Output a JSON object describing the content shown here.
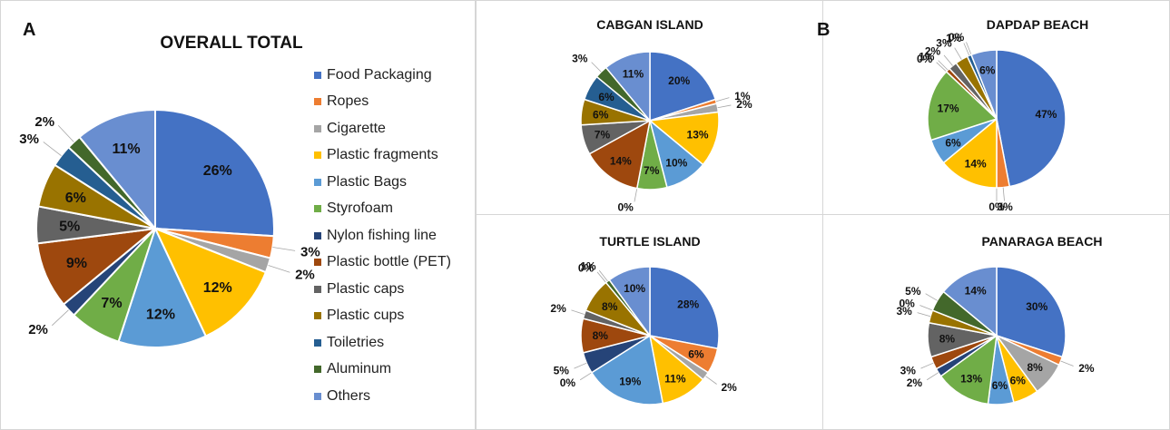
{
  "panel_labels": {
    "a": "A",
    "b": "B"
  },
  "categories": [
    "Food Packaging",
    "Ropes",
    "Cigarette",
    "Plastic fragments",
    "Plastic Bags",
    "Styrofoam",
    "Nylon fishing line",
    "Plastic bottle (PET)",
    "Plastic caps",
    "Plastic cups",
    "Toiletries",
    "Aluminum",
    "Others"
  ],
  "colors": [
    "#4472C4",
    "#ED7D31",
    "#A5A5A5",
    "#FFC000",
    "#5B9BD5",
    "#70AD47",
    "#264478",
    "#9E480E",
    "#636363",
    "#997300",
    "#255E91",
    "#43682B",
    "#698ED0"
  ],
  "chart_data": [
    {
      "type": "pie",
      "title": "OVERALL TOTAL",
      "categories": [
        "Food Packaging",
        "Ropes",
        "Cigarette",
        "Plastic fragments",
        "Plastic Bags",
        "Styrofoam",
        "Nylon fishing line",
        "Plastic bottle (PET)",
        "Plastic caps",
        "Plastic cups",
        "Toiletries",
        "Aluminum",
        "Others"
      ],
      "values": [
        26,
        3,
        2,
        12,
        12,
        7,
        2,
        9,
        5,
        6,
        3,
        2,
        11
      ],
      "labels": [
        "26%",
        "3%",
        "2%",
        "12%",
        "12%",
        "7%",
        "2%",
        "9%",
        "5%",
        "6%",
        "3%",
        "2%",
        "11%"
      ],
      "legend": "right"
    },
    {
      "type": "pie",
      "title": "CABGAN ISLAND",
      "categories": [
        "Food Packaging",
        "Ropes",
        "Cigarette",
        "Plastic fragments",
        "Plastic Bags",
        "Styrofoam",
        "Nylon fishing line",
        "Plastic bottle (PET)",
        "Plastic caps",
        "Plastic cups",
        "Toiletries",
        "Aluminum",
        "Others"
      ],
      "values": [
        20,
        1,
        2,
        13,
        10,
        7,
        0,
        14,
        7,
        6,
        6,
        3,
        11
      ],
      "labels": [
        "20%",
        "1%",
        "2%",
        "13%",
        "10%",
        "7%",
        "0%",
        "14%",
        "7%",
        "6%",
        "6%",
        "3%",
        "11%"
      ]
    },
    {
      "type": "pie",
      "title": "DAPDAP BEACH",
      "categories": [
        "Food Packaging",
        "Ropes",
        "Cigarette",
        "Plastic fragments",
        "Plastic Bags",
        "Styrofoam",
        "Nylon fishing line",
        "Plastic bottle (PET)",
        "Plastic caps",
        "Plastic cups",
        "Toiletries",
        "Aluminum",
        "Others"
      ],
      "values": [
        47,
        3,
        0,
        14,
        6,
        17,
        0,
        1,
        2,
        3,
        1,
        0,
        6
      ],
      "labels": [
        "47%",
        "3%",
        "0%",
        "14%",
        "6%",
        "17%",
        "0%",
        "1%",
        "2%",
        "3%",
        "1%",
        "0%",
        "6%"
      ]
    },
    {
      "type": "pie",
      "title": "TURTLE ISLAND",
      "categories": [
        "Food Packaging",
        "Ropes",
        "Cigarette",
        "Plastic fragments",
        "Plastic Bags",
        "Styrofoam",
        "Nylon fishing line",
        "Plastic bottle (PET)",
        "Plastic caps",
        "Plastic cups",
        "Toiletries",
        "Aluminum",
        "Others"
      ],
      "values": [
        28,
        6,
        2,
        11,
        19,
        0,
        5,
        8,
        2,
        8,
        0,
        1,
        10
      ],
      "labels": [
        "28%",
        "6%",
        "2%",
        "11%",
        "19%",
        "0%",
        "5%",
        "8%",
        "2%",
        "8%",
        "0%",
        "1%",
        "10%"
      ]
    },
    {
      "type": "pie",
      "title": "PANARAGA BEACH",
      "categories": [
        "Food Packaging",
        "Ropes",
        "Cigarette",
        "Plastic fragments",
        "Plastic Bags",
        "Styrofoam",
        "Nylon fishing line",
        "Plastic bottle (PET)",
        "Plastic caps",
        "Plastic cups",
        "Toiletries",
        "Aluminum",
        "Others"
      ],
      "values": [
        30,
        2,
        8,
        6,
        6,
        13,
        2,
        3,
        8,
        3,
        0,
        5,
        14
      ],
      "labels": [
        "30%",
        "2%",
        "8%",
        "6%",
        "6%",
        "13%",
        "2%",
        "3%",
        "8%",
        "3%",
        "0%",
        "5%",
        "14%"
      ]
    }
  ]
}
